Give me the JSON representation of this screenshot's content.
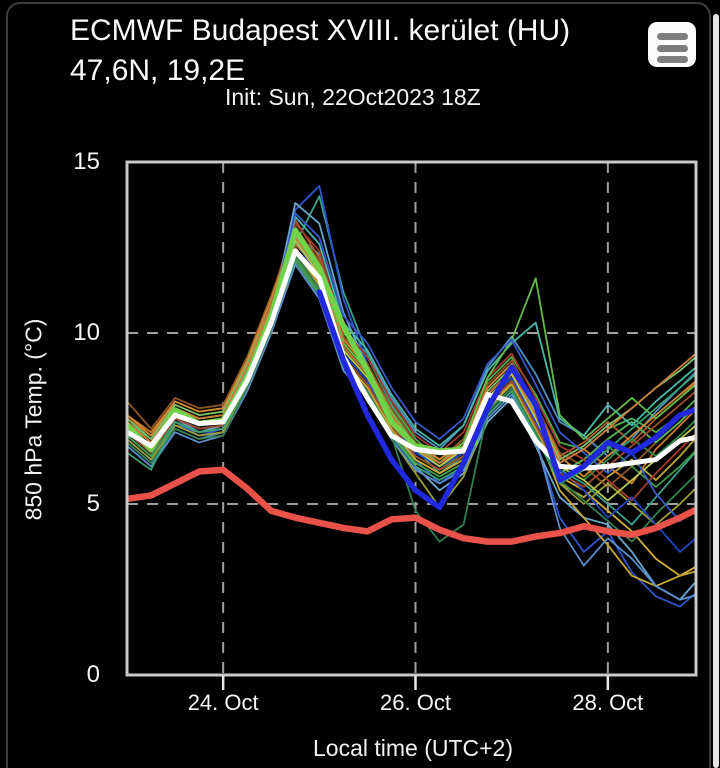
{
  "header": {
    "title_line1": "ECMWF Budapest XVIII. kerület (HU)",
    "title_line2": "47,6N, 19,2E",
    "init_label": "Init: Sun, 22Oct2023 18Z"
  },
  "menu": {
    "icon": "hamburger-icon"
  },
  "axes": {
    "y_title": "850 hPa Temp. (°C)",
    "x_title": "Local time (UTC+2)",
    "y_ticks": [
      {
        "value": 0,
        "label": "0"
      },
      {
        "value": 5,
        "label": "5"
      },
      {
        "value": 10,
        "label": "10"
      },
      {
        "value": 15,
        "label": "15"
      }
    ],
    "x_ticks": [
      {
        "hour": 24,
        "label": "24. Oct"
      },
      {
        "hour": 72,
        "label": "26. Oct"
      },
      {
        "hour": 120,
        "label": "28. Oct"
      }
    ],
    "y_gridlines": [
      5,
      10
    ],
    "y_range": [
      0,
      15
    ],
    "x_range_hours": [
      0,
      142
    ]
  },
  "colors": {
    "background": "#000000",
    "frame": "#c9c9c9",
    "grid": "#a0a0a0",
    "text": "#ffffff",
    "ens_mean": "#ffffff",
    "hres": "#70d348",
    "control": "#2228dd",
    "climate": "#e8524a"
  },
  "chart_data": {
    "type": "line",
    "title": "ECMWF Budapest XVIII. kerület (HU) — 850 hPa Temp. (°C)",
    "xlabel": "Local time (UTC+2)",
    "ylabel": "850 hPa Temp. (°C)",
    "ylim": [
      0,
      15
    ],
    "grid": "dashed, at y=5,10 and x=24.Oct/26.Oct/28.Oct",
    "legend": "none",
    "x_hours": [
      0,
      6,
      12,
      18,
      24,
      30,
      36,
      42,
      48,
      54,
      60,
      66,
      72,
      78,
      84,
      90,
      96,
      102,
      108,
      114,
      120,
      126,
      132,
      138,
      144
    ],
    "series": [
      {
        "name": "thick-red-climate-line",
        "color": "#e8524a",
        "width": 6.5,
        "values": [
          5.15,
          5.25,
          5.6,
          5.95,
          6.0,
          5.45,
          4.8,
          4.6,
          4.45,
          4.3,
          4.2,
          4.55,
          4.6,
          4.25,
          4.0,
          3.9,
          3.9,
          4.05,
          4.15,
          4.35,
          4.2,
          4.1,
          4.3,
          4.6,
          4.95
        ]
      },
      {
        "name": "thick-green-hres-line",
        "color": "#70d348",
        "width": 5.5,
        "x_hours": [
          0,
          6,
          12,
          18,
          24,
          30,
          36,
          42,
          48,
          54,
          60,
          66,
          72,
          78,
          84,
          87
        ],
        "values": [
          7.3,
          6.6,
          7.75,
          7.35,
          7.45,
          8.7,
          10.5,
          13.0,
          11.9,
          10.2,
          8.9,
          7.4,
          6.7,
          6.55,
          6.6,
          6.8
        ]
      },
      {
        "name": "thick-white-ensemble-mean-line",
        "color": "#ffffff",
        "width": 5,
        "values": [
          7.1,
          6.7,
          7.6,
          7.35,
          7.4,
          8.6,
          10.3,
          12.4,
          11.6,
          9.3,
          8.1,
          7.0,
          6.6,
          6.5,
          6.55,
          8.2,
          8.0,
          6.85,
          6.1,
          6.05,
          6.1,
          6.2,
          6.3,
          6.85,
          7.0
        ]
      },
      {
        "name": "thick-blue-control-line",
        "color": "#2228dd",
        "width": 5.5,
        "x_hours": [
          48,
          54,
          60,
          66,
          72,
          78,
          84,
          90,
          96,
          102,
          108,
          114,
          120,
          126,
          132,
          138,
          144
        ],
        "values": [
          11.2,
          9.2,
          7.6,
          6.3,
          5.4,
          4.9,
          6.2,
          7.8,
          9.0,
          7.9,
          5.7,
          6.1,
          6.8,
          6.5,
          6.95,
          7.6,
          7.85
        ]
      }
    ],
    "members": [
      {
        "color": "#4caf50",
        "values": [
          7.4,
          6.9,
          7.8,
          7.5,
          7.6,
          9.0,
          10.8,
          13.1,
          12.0,
          10.0,
          9.3,
          7.9,
          6.9,
          6.3,
          6.9,
          8.6,
          9.3,
          8.2,
          6.8,
          6.6,
          7.2,
          7.5,
          7.1,
          7.6,
          8.3
        ]
      },
      {
        "color": "#b9a53c",
        "values": [
          7.0,
          6.4,
          7.3,
          7.1,
          7.2,
          8.3,
          10.0,
          12.2,
          11.2,
          9.1,
          8.2,
          7.0,
          6.2,
          5.8,
          6.2,
          7.7,
          8.6,
          7.0,
          5.6,
          5.2,
          5.8,
          6.3,
          5.7,
          6.4,
          7.2
        ]
      },
      {
        "color": "#d07a2f",
        "values": [
          7.6,
          7.1,
          8.0,
          7.7,
          7.8,
          9.2,
          10.6,
          12.6,
          11.8,
          9.6,
          8.8,
          7.5,
          6.6,
          6.1,
          6.7,
          8.2,
          8.9,
          7.6,
          6.2,
          6.6,
          6.1,
          5.6,
          6.6,
          7.3,
          8.0
        ]
      },
      {
        "color": "#4f8fbf",
        "values": [
          6.8,
          6.2,
          7.2,
          6.9,
          7.1,
          8.4,
          10.2,
          12.9,
          12.3,
          10.1,
          9.4,
          8.1,
          7.1,
          6.6,
          7.3,
          9.0,
          9.9,
          8.8,
          7.4,
          7.0,
          6.4,
          6.9,
          7.7,
          8.4,
          9.1
        ]
      },
      {
        "color": "#3aa08f",
        "values": [
          7.2,
          6.6,
          7.5,
          7.2,
          7.3,
          8.7,
          10.4,
          12.6,
          14.0,
          11.2,
          9.4,
          7.9,
          6.6,
          5.9,
          6.4,
          8.0,
          8.7,
          7.4,
          6.0,
          5.6,
          5.0,
          4.4,
          5.2,
          6.0,
          6.8
        ]
      },
      {
        "color": "#b05c28",
        "values": [
          7.5,
          7.0,
          7.9,
          7.6,
          7.7,
          9.1,
          11.0,
          13.3,
          12.2,
          9.9,
          8.9,
          7.6,
          6.7,
          6.2,
          6.8,
          8.4,
          9.1,
          7.8,
          6.4,
          6.8,
          7.4,
          6.8,
          7.5,
          8.1,
          8.8
        ]
      },
      {
        "color": "#2f55cc",
        "values": [
          6.9,
          6.3,
          7.4,
          7.0,
          7.2,
          8.5,
          10.6,
          13.6,
          14.3,
          11.0,
          9.1,
          7.6,
          6.3,
          5.6,
          6.1,
          7.6,
          8.3,
          6.9,
          4.6,
          3.6,
          4.2,
          3.0,
          2.3,
          2.0,
          2.6
        ]
      },
      {
        "color": "#2e8b4a",
        "values": [
          7.3,
          6.7,
          7.7,
          7.4,
          7.5,
          8.9,
          10.7,
          12.8,
          11.7,
          9.5,
          8.7,
          7.4,
          6.4,
          6.0,
          6.5,
          8.1,
          8.8,
          7.5,
          6.1,
          5.7,
          6.3,
          6.9,
          6.4,
          7.0,
          7.7
        ]
      },
      {
        "color": "#d4af37",
        "values": [
          7.1,
          6.5,
          7.4,
          7.1,
          7.3,
          8.6,
          10.3,
          12.3,
          11.3,
          9.2,
          8.4,
          7.2,
          6.3,
          5.9,
          6.3,
          7.8,
          8.5,
          7.2,
          5.8,
          5.4,
          4.8,
          4.2,
          3.4,
          2.9,
          3.3
        ]
      },
      {
        "color": "#8d5524",
        "values": [
          8.0,
          7.2,
          8.1,
          7.8,
          7.9,
          9.3,
          11.1,
          13.1,
          12.1,
          9.9,
          9.1,
          7.8,
          6.8,
          6.3,
          6.9,
          8.5,
          9.2,
          7.9,
          6.5,
          6.1,
          5.5,
          6.1,
          6.8,
          7.4,
          8.1
        ]
      },
      {
        "color": "#6aa7cc",
        "values": [
          7.0,
          6.4,
          7.5,
          7.1,
          7.3,
          8.6,
          10.5,
          13.8,
          13.2,
          10.6,
          9.0,
          7.4,
          6.1,
          5.4,
          5.9,
          7.4,
          8.1,
          6.7,
          5.2,
          4.6,
          4.4,
          3.6,
          2.6,
          2.2,
          3.0
        ]
      },
      {
        "color": "#58b85c",
        "values": [
          7.2,
          6.6,
          7.6,
          7.3,
          7.4,
          8.8,
          10.6,
          12.5,
          11.5,
          9.3,
          8.5,
          7.3,
          6.4,
          6.0,
          6.4,
          7.9,
          8.6,
          7.3,
          5.9,
          6.3,
          6.9,
          7.4,
          6.8,
          7.4,
          8.1
        ]
      },
      {
        "color": "#a33a2e",
        "values": [
          7.4,
          6.8,
          7.8,
          7.5,
          7.6,
          9.0,
          10.9,
          13.2,
          12.4,
          10.1,
          9.3,
          8.0,
          7.0,
          6.5,
          7.1,
          8.7,
          9.4,
          8.1,
          6.7,
          6.3,
          5.7,
          5.1,
          5.9,
          6.6,
          7.3
        ]
      },
      {
        "color": "#9a9e35",
        "values": [
          6.9,
          6.3,
          7.3,
          7.0,
          7.1,
          8.4,
          10.1,
          12.1,
          11.1,
          9.0,
          8.1,
          6.9,
          5.9,
          4.9,
          5.8,
          7.6,
          8.3,
          7.0,
          5.6,
          5.0,
          5.6,
          5.0,
          4.4,
          5.0,
          5.7
        ]
      },
      {
        "color": "#79c26a",
        "values": [
          7.5,
          6.9,
          7.9,
          7.6,
          7.7,
          9.1,
          10.8,
          12.8,
          11.8,
          9.7,
          8.9,
          7.6,
          6.6,
          6.2,
          6.7,
          8.3,
          9.0,
          7.7,
          6.3,
          6.7,
          7.3,
          7.8,
          8.4,
          8.9,
          9.5
        ]
      },
      {
        "color": "#2244bb",
        "values": [
          7.1,
          6.5,
          7.5,
          7.2,
          7.3,
          8.7,
          10.4,
          12.7,
          11.6,
          9.4,
          8.6,
          7.4,
          6.5,
          6.1,
          6.5,
          8.0,
          8.7,
          7.4,
          6.0,
          5.4,
          4.6,
          5.2,
          4.4,
          3.6,
          4.2
        ]
      },
      {
        "color": "#49b8a8",
        "values": [
          7.3,
          6.7,
          7.7,
          7.4,
          7.5,
          8.9,
          10.6,
          13.4,
          12.6,
          10.3,
          9.5,
          8.2,
          7.2,
          6.7,
          7.3,
          8.9,
          9.7,
          10.3,
          7.5,
          7.0,
          7.9,
          7.3,
          8.0,
          8.6,
          9.2
        ]
      },
      {
        "color": "#cc8833",
        "values": [
          7.6,
          7.0,
          8.0,
          7.7,
          7.8,
          9.2,
          11.0,
          13.0,
          12.0,
          9.8,
          9.0,
          7.7,
          6.7,
          6.3,
          6.8,
          8.4,
          9.1,
          7.8,
          6.4,
          5.8,
          6.4,
          7.0,
          7.6,
          8.2,
          8.8
        ]
      },
      {
        "color": "#3f9b45",
        "values": [
          7.0,
          6.4,
          7.4,
          7.1,
          7.2,
          8.5,
          10.2,
          12.2,
          11.2,
          9.1,
          8.3,
          7.1,
          6.2,
          5.8,
          6.2,
          7.7,
          8.4,
          7.1,
          5.7,
          6.1,
          6.7,
          6.1,
          5.5,
          6.1,
          6.8
        ]
      },
      {
        "color": "#c8a832",
        "values": [
          7.2,
          6.6,
          7.6,
          7.3,
          7.4,
          8.8,
          10.5,
          12.4,
          11.4,
          9.2,
          8.4,
          7.2,
          6.3,
          5.9,
          6.3,
          7.8,
          8.5,
          7.2,
          5.4,
          4.6,
          3.8,
          2.9,
          2.6,
          2.9,
          3.1
        ]
      },
      {
        "color": "#5a8ecc",
        "values": [
          6.7,
          6.1,
          7.1,
          6.8,
          7.0,
          8.3,
          10.0,
          12.0,
          11.0,
          8.9,
          8.1,
          6.9,
          6.0,
          5.6,
          6.0,
          7.5,
          8.2,
          6.9,
          4.3,
          3.2,
          4.0,
          3.4,
          2.6,
          2.2,
          2.4
        ]
      },
      {
        "color": "#66bb4a",
        "values": [
          7.4,
          6.8,
          7.8,
          7.5,
          7.6,
          9.0,
          10.7,
          12.9,
          11.9,
          9.7,
          8.9,
          7.7,
          6.7,
          6.2,
          6.8,
          8.7,
          9.8,
          11.6,
          7.6,
          6.9,
          7.5,
          8.1,
          7.5,
          8.1,
          8.7
        ]
      },
      {
        "color": "#a34a2e",
        "values": [
          7.1,
          6.5,
          7.5,
          7.2,
          7.3,
          8.6,
          10.4,
          12.5,
          11.5,
          9.3,
          8.5,
          7.3,
          6.4,
          6.0,
          6.4,
          7.9,
          8.6,
          7.3,
          5.9,
          5.5,
          6.1,
          6.7,
          7.3,
          7.9,
          8.5
        ]
      },
      {
        "color": "#b5c84e",
        "values": [
          7.3,
          6.7,
          7.7,
          7.4,
          7.5,
          8.8,
          10.6,
          12.7,
          11.7,
          9.5,
          8.7,
          7.5,
          6.6,
          6.1,
          6.6,
          8.1,
          8.8,
          7.5,
          6.1,
          5.7,
          5.1,
          5.7,
          6.3,
          6.9,
          7.5
        ]
      },
      {
        "color": "#347f52",
        "values": [
          6.8,
          6.2,
          7.2,
          6.9,
          7.0,
          8.4,
          10.1,
          12.3,
          11.3,
          9.1,
          8.3,
          7.0,
          4.8,
          3.9,
          4.4,
          7.7,
          8.4,
          7.1,
          5.7,
          5.1,
          4.5,
          3.9,
          4.7,
          5.4,
          6.1
        ]
      },
      {
        "color": "#3858c8",
        "values": [
          7.2,
          6.6,
          7.6,
          7.3,
          7.4,
          8.7,
          10.5,
          13.5,
          12.8,
          10.5,
          9.7,
          8.4,
          7.4,
          6.9,
          7.5,
          9.1,
          9.8,
          8.5,
          7.1,
          6.5,
          5.9,
          6.5,
          5.3,
          4.5,
          5.1
        ]
      },
      {
        "color": "#3aa078",
        "values": [
          6.5,
          6.0,
          7.4,
          7.1,
          7.2,
          8.6,
          10.3,
          12.1,
          11.1,
          9.0,
          8.2,
          7.0,
          6.1,
          5.7,
          6.1,
          7.6,
          8.3,
          7.0,
          5.6,
          6.0,
          6.6,
          7.2,
          7.8,
          8.4,
          9.0
        ]
      },
      {
        "color": "#c87a3a",
        "values": [
          7.4,
          6.8,
          7.8,
          7.5,
          7.6,
          9.0,
          10.8,
          12.8,
          11.8,
          9.6,
          8.8,
          7.6,
          6.6,
          6.2,
          6.7,
          8.2,
          8.9,
          7.6,
          6.2,
          6.6,
          7.2,
          7.8,
          8.4,
          9.0,
          9.6
        ]
      }
    ]
  }
}
